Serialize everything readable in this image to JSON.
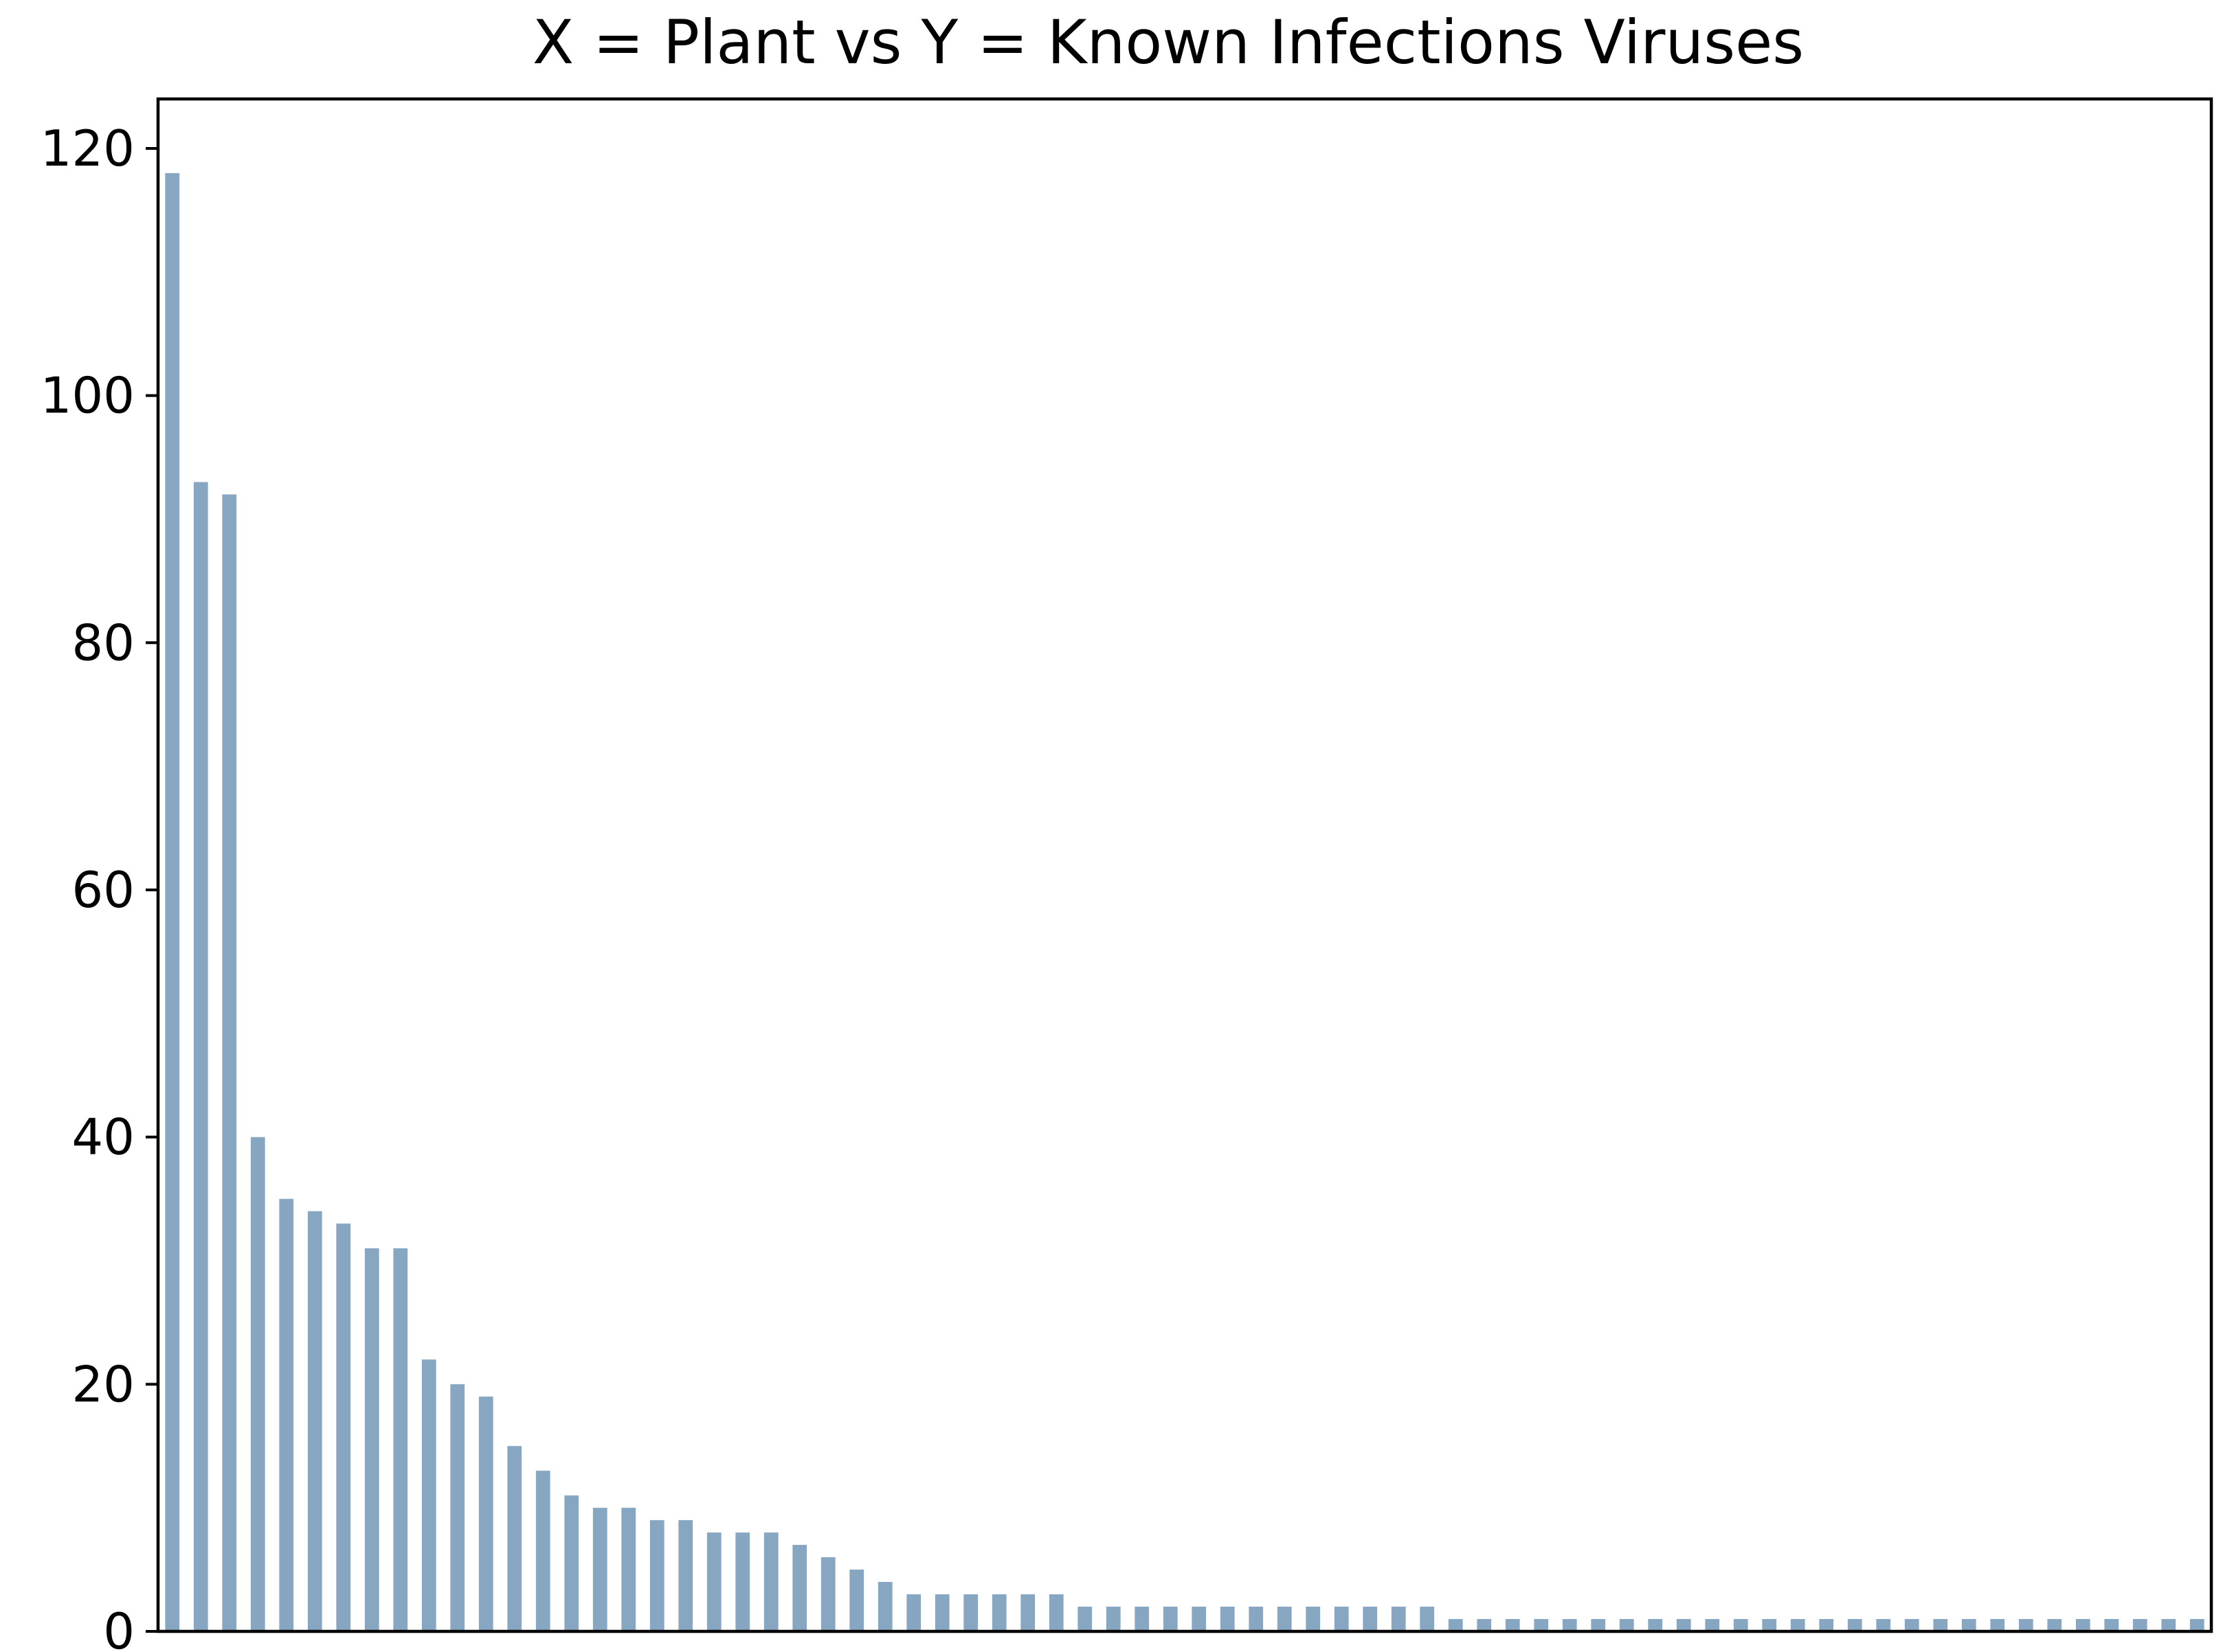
{
  "chart_data": {
    "type": "bar",
    "title": "X = Plant vs Y = Known Infections Viruses",
    "xlabel": "",
    "ylabel": "",
    "ylim": [
      0,
      124
    ],
    "yticks": [
      0,
      20,
      40,
      60,
      80,
      100,
      120
    ],
    "x_tick_labels_visible": false,
    "grid": false,
    "legend": "none",
    "bar_color": "#87a6c2",
    "values": [
      118,
      93,
      92,
      40,
      35,
      34,
      33,
      31,
      31,
      22,
      20,
      19,
      15,
      13,
      11,
      10,
      10,
      9,
      9,
      8,
      8,
      8,
      7,
      6,
      5,
      4,
      3,
      3,
      3,
      3,
      3,
      3,
      2,
      2,
      2,
      2,
      2,
      2,
      2,
      2,
      2,
      2,
      2,
      2,
      2,
      1,
      1,
      1,
      1,
      1,
      1,
      1,
      1,
      1,
      1,
      1,
      1,
      1,
      1,
      1,
      1,
      1,
      1,
      1,
      1,
      1,
      1,
      1,
      1,
      1,
      1,
      1
    ]
  }
}
